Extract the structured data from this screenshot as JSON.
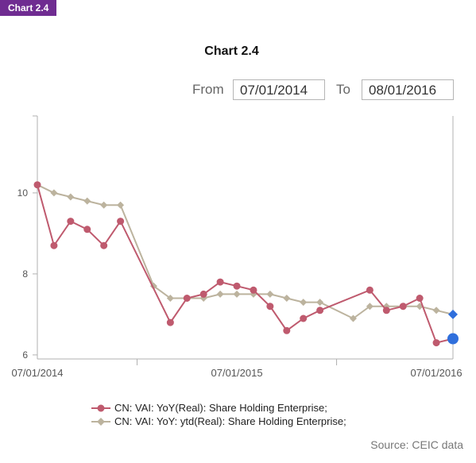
{
  "header": {
    "tag": "Chart 2.4",
    "title": "Chart 2.4"
  },
  "range": {
    "from_label": "From",
    "from_value": "07/01/2014",
    "to_label": "To",
    "to_value": "08/01/2016"
  },
  "source": "Source: CEIC data",
  "chart_data": {
    "type": "line",
    "title": "Chart 2.4",
    "xlabel": "",
    "ylabel": "",
    "ylim": [
      5.9,
      11.9
    ],
    "yticks": [
      6,
      8,
      10
    ],
    "xtick_labels": [
      "07/01/2014",
      "07/01/2015",
      "07/01/2016"
    ],
    "grid": false,
    "legend_position": "bottom",
    "series": [
      {
        "name": "CN: VAI: YoY(Real): Share Holding Enterprise;",
        "color": "#bf5a6e",
        "marker": "circle",
        "points": [
          [
            "2014-07",
            10.2
          ],
          [
            "2014-08",
            8.7
          ],
          [
            "2014-09",
            9.3
          ],
          [
            "2014-10",
            9.1
          ],
          [
            "2014-11",
            8.7
          ],
          [
            "2014-12",
            9.3
          ],
          [
            "2015-03",
            6.8
          ],
          [
            "2015-04",
            7.4
          ],
          [
            "2015-05",
            7.5
          ],
          [
            "2015-06",
            7.8
          ],
          [
            "2015-07",
            7.7
          ],
          [
            "2015-08",
            7.6
          ],
          [
            "2015-09",
            7.2
          ],
          [
            "2015-10",
            6.6
          ],
          [
            "2015-11",
            6.9
          ],
          [
            "2015-12",
            7.1
          ],
          [
            "2016-03",
            7.6
          ],
          [
            "2016-04",
            7.1
          ],
          [
            "2016-05",
            7.2
          ],
          [
            "2016-06",
            7.4
          ],
          [
            "2016-07",
            6.3
          ],
          [
            "2016-08",
            6.4
          ]
        ]
      },
      {
        "name": "CN: VAI: YoY: ytd(Real): Share Holding Enterprise;",
        "color": "#bcb39e",
        "marker": "diamond",
        "points": [
          [
            "2014-07",
            10.2
          ],
          [
            "2014-08",
            10.0
          ],
          [
            "2014-09",
            9.9
          ],
          [
            "2014-10",
            9.8
          ],
          [
            "2014-11",
            9.7
          ],
          [
            "2014-12",
            9.7
          ],
          [
            "2015-02",
            7.7
          ],
          [
            "2015-03",
            7.4
          ],
          [
            "2015-04",
            7.4
          ],
          [
            "2015-05",
            7.4
          ],
          [
            "2015-06",
            7.5
          ],
          [
            "2015-07",
            7.5
          ],
          [
            "2015-08",
            7.5
          ],
          [
            "2015-09",
            7.5
          ],
          [
            "2015-10",
            7.4
          ],
          [
            "2015-11",
            7.3
          ],
          [
            "2015-12",
            7.3
          ],
          [
            "2016-02",
            6.9
          ],
          [
            "2016-03",
            7.2
          ],
          [
            "2016-04",
            7.2
          ],
          [
            "2016-05",
            7.2
          ],
          [
            "2016-06",
            7.2
          ],
          [
            "2016-07",
            7.1
          ],
          [
            "2016-08",
            7.0
          ]
        ]
      }
    ],
    "highlight_color": "#2f6fdc"
  }
}
